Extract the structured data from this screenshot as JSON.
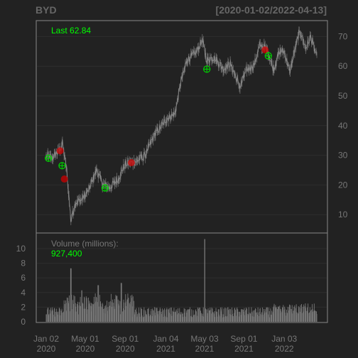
{
  "chart_data": {
    "type": "candlestick-with-volume",
    "symbol": "BYD",
    "date_range": "[2020-01-02/2022-04-13]",
    "last_label": "Last 62.84",
    "price_axis": {
      "ylim": [
        0,
        75
      ],
      "ticks": [
        10,
        20,
        30,
        40,
        50,
        60,
        70
      ]
    },
    "volume_axis": {
      "ylim": [
        0,
        11.5
      ],
      "ticks": [
        0,
        2,
        4,
        6,
        8,
        10
      ]
    },
    "volume_label": "Volume (millions):",
    "volume_value": "927,400",
    "x_ticks": [
      {
        "date": "2020-01-02",
        "line1": "Jan 02",
        "line2": "2020"
      },
      {
        "date": "2020-05-01",
        "line1": "May 01",
        "line2": "2020"
      },
      {
        "date": "2020-09-01",
        "line1": "Sep 01",
        "line2": "2020"
      },
      {
        "date": "2021-01-04",
        "line1": "Jan 04",
        "line2": "2021"
      },
      {
        "date": "2021-05-03",
        "line1": "May 03",
        "line2": "2021"
      },
      {
        "date": "2021-09-01",
        "line1": "Sep 01",
        "line2": "2021"
      },
      {
        "date": "2022-01-03",
        "line1": "Jan 03",
        "line2": "2022"
      }
    ],
    "price_path": [
      [
        "2020-01-02",
        30.0
      ],
      [
        "2020-01-20",
        29.0
      ],
      [
        "2020-02-10",
        31.5
      ],
      [
        "2020-02-21",
        34.0
      ],
      [
        "2020-03-05",
        25.0
      ],
      [
        "2020-03-18",
        8.0
      ],
      [
        "2020-04-01",
        14.0
      ],
      [
        "2020-04-20",
        15.0
      ],
      [
        "2020-05-10",
        18.0
      ],
      [
        "2020-06-05",
        25.0
      ],
      [
        "2020-06-25",
        20.0
      ],
      [
        "2020-07-15",
        19.0
      ],
      [
        "2020-08-10",
        22.0
      ],
      [
        "2020-09-01",
        27.0
      ],
      [
        "2020-10-05",
        28.0
      ],
      [
        "2020-11-01",
        30.0
      ],
      [
        "2020-12-01",
        37.0
      ],
      [
        "2021-01-04",
        42.0
      ],
      [
        "2021-02-01",
        44.0
      ],
      [
        "2021-02-20",
        55.0
      ],
      [
        "2021-03-10",
        62.0
      ],
      [
        "2021-04-10",
        65.0
      ],
      [
        "2021-04-25",
        69.0
      ],
      [
        "2021-05-10",
        62.0
      ],
      [
        "2021-06-01",
        63.0
      ],
      [
        "2021-07-01",
        59.0
      ],
      [
        "2021-07-20",
        61.0
      ],
      [
        "2021-08-20",
        53.0
      ],
      [
        "2021-09-10",
        59.0
      ],
      [
        "2021-10-01",
        60.0
      ],
      [
        "2021-10-20",
        67.0
      ],
      [
        "2021-11-10",
        66.0
      ],
      [
        "2021-12-01",
        59.0
      ],
      [
        "2021-12-20",
        65.0
      ],
      [
        "2022-01-03",
        65.0
      ],
      [
        "2022-01-20",
        58.0
      ],
      [
        "2022-02-01",
        64.0
      ],
      [
        "2022-02-20",
        72.0
      ],
      [
        "2022-03-10",
        66.0
      ],
      [
        "2022-03-25",
        70.0
      ],
      [
        "2022-04-13",
        62.84
      ]
    ],
    "buy_signals": [
      {
        "date": "2020-01-09",
        "price": 29.0
      },
      {
        "date": "2020-02-20",
        "price": 26.5
      },
      {
        "date": "2020-07-01",
        "price": 19.0
      },
      {
        "date": "2021-05-10",
        "price": 59.0
      },
      {
        "date": "2021-11-15",
        "price": 63.5
      }
    ],
    "sell_signals": [
      {
        "date": "2020-02-14",
        "price": 31.5
      },
      {
        "date": "2020-02-27",
        "price": 22.0
      },
      {
        "date": "2020-09-20",
        "price": 27.5
      },
      {
        "date": "2021-11-05",
        "price": 65.5
      }
    ],
    "volume_spikes": [
      {
        "date": "2020-03-18",
        "value": 7.3
      },
      {
        "date": "2020-04-20",
        "value": 4.3
      },
      {
        "date": "2020-06-10",
        "value": 5.0
      },
      {
        "date": "2020-08-20",
        "value": 5.3
      },
      {
        "date": "2021-05-03",
        "value": 11.3
      }
    ],
    "colors": {
      "background": "#222222",
      "plot_background": "#222222",
      "border": "#888888",
      "grid": "#2e2e2e",
      "price_series": "#888888",
      "volume_bars": "#777777",
      "buy_signal": "#00cc00",
      "sell_signal": "#cc0000",
      "text": "#666666",
      "highlight": "#00ff00"
    }
  }
}
